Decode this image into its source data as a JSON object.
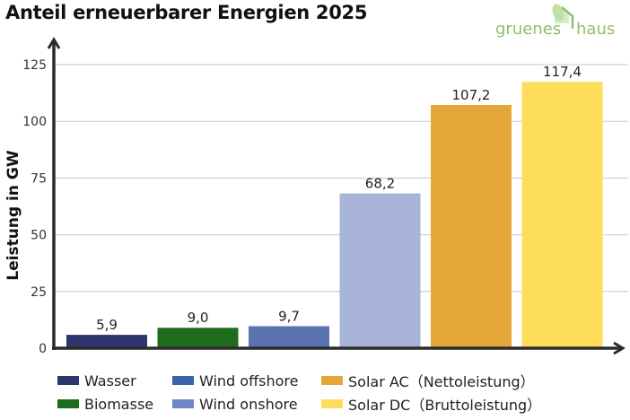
{
  "header": {
    "title": "Anteil erneuerbarer Energien 2025"
  },
  "logo": {
    "word1": "gruenes",
    "word2": "haus",
    "color": "#8fbf6f"
  },
  "chart_data": {
    "type": "bar",
    "title": "Anteil erneuerbarer Energien 2025",
    "xlabel": "",
    "ylabel": "Leistung in GW",
    "ylim": [
      0,
      125
    ],
    "yticks": [
      0,
      25,
      50,
      75,
      100,
      125
    ],
    "grid": true,
    "legend_position": "bottom",
    "categories": [
      "Wasser",
      "Biomasse",
      "Wind offshore",
      "Wind onshore",
      "Solar AC (Nettoleistung)",
      "Solar DC (Bruttoleistung)"
    ],
    "values": [
      5.9,
      9.0,
      9.7,
      68.2,
      107.2,
      117.4
    ],
    "value_labels": [
      "5,9",
      "9,0",
      "9,7",
      "68,2",
      "107,2",
      "117,4"
    ],
    "colors": [
      "#2e3670",
      "#1e6b1e",
      "#5a72b0",
      "#a8b5d8",
      "#e5a838",
      "#ffdd5c"
    ]
  },
  "legend": [
    {
      "label": "Wasser",
      "color": "#2e3670"
    },
    {
      "label": "Biomasse",
      "color": "#1e6b1e"
    },
    {
      "label": "Wind offshore",
      "color": "#3a66a8"
    },
    {
      "label": "Wind onshore",
      "color": "#6e86c4"
    },
    {
      "label": "Solar AC（Nettoleistung）",
      "color": "#e5a838"
    },
    {
      "label": "Solar DC（Bruttoleistung）",
      "color": "#ffdd5c"
    }
  ]
}
